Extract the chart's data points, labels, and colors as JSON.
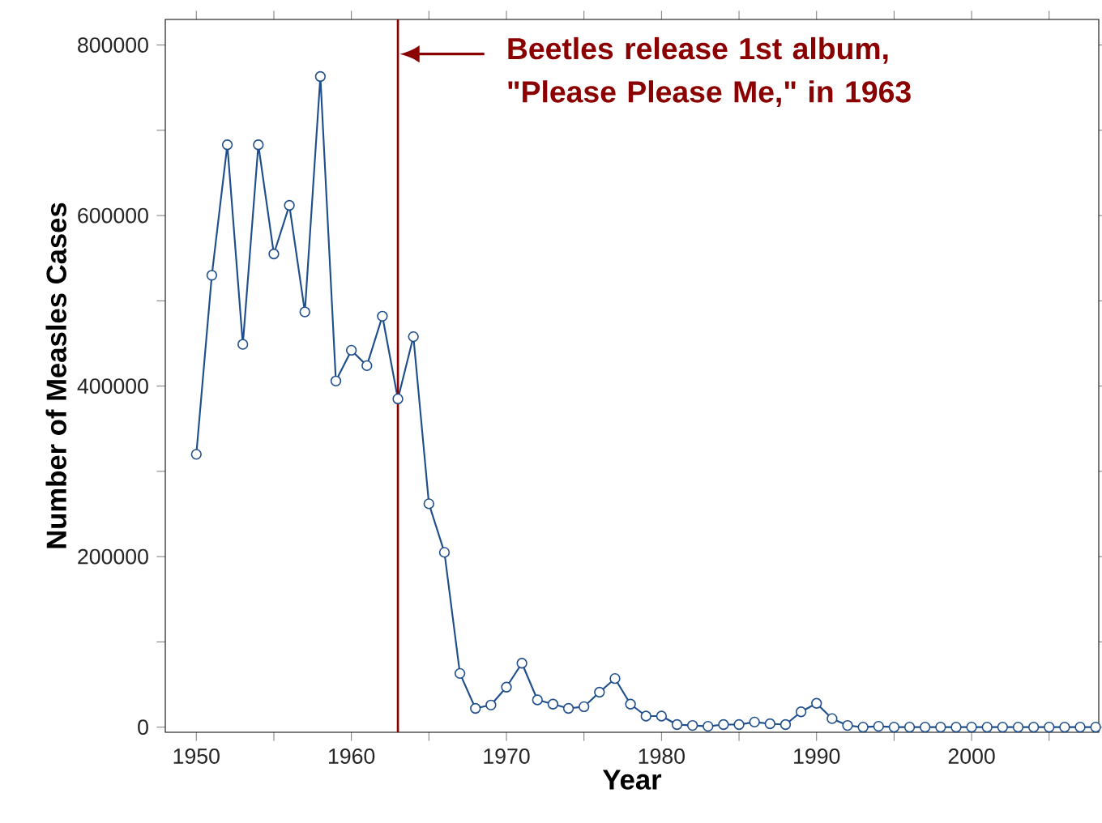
{
  "chart_data": {
    "type": "line",
    "xlabel": "Year",
    "ylabel": "Number of Measles Cases",
    "x": [
      1950,
      1951,
      1952,
      1953,
      1954,
      1955,
      1956,
      1957,
      1958,
      1959,
      1960,
      1961,
      1962,
      1963,
      1964,
      1965,
      1966,
      1967,
      1968,
      1969,
      1970,
      1971,
      1972,
      1973,
      1974,
      1975,
      1976,
      1977,
      1978,
      1979,
      1980,
      1981,
      1982,
      1983,
      1984,
      1985,
      1986,
      1987,
      1988,
      1989,
      1990,
      1991,
      1992,
      1993,
      1994,
      1995,
      1996,
      1997,
      1998,
      1999,
      2000,
      2001,
      2002,
      2003,
      2004,
      2005,
      2006,
      2007,
      2008
    ],
    "values": [
      320000,
      530000,
      683000,
      449000,
      683000,
      555000,
      612000,
      487000,
      763000,
      406000,
      442000,
      424000,
      482000,
      385000,
      458000,
      262000,
      205000,
      63000,
      22000,
      26000,
      47000,
      75000,
      32000,
      27000,
      22000,
      24000,
      41000,
      57000,
      27000,
      13000,
      13000,
      3000,
      2000,
      1000,
      3000,
      3000,
      6000,
      4000,
      3000,
      18000,
      28000,
      10000,
      2000,
      0,
      1000,
      0,
      0,
      0,
      0,
      0,
      0,
      0,
      0,
      0,
      0,
      0,
      0,
      0,
      0
    ],
    "color": "#1f4e8c",
    "marker": "circle",
    "line_style": "solid",
    "xlim": [
      1948,
      2008.2
    ],
    "ylim": [
      -6000,
      830000
    ],
    "xticks": [
      1950,
      {
        "value": 1955,
        "label": null
      },
      1960,
      {
        "value": 1965,
        "label": null
      },
      1970,
      {
        "value": 1975,
        "label": null
      },
      1980,
      {
        "value": 1985,
        "label": null
      },
      1990,
      {
        "value": 1995,
        "label": null
      },
      2000,
      {
        "value": 2005,
        "label": null
      }
    ],
    "yticks": [
      0,
      {
        "value": 100000,
        "label": null
      },
      200000,
      {
        "value": 300000,
        "label": null
      },
      400000,
      {
        "value": 500000,
        "label": null
      },
      600000,
      {
        "value": 700000,
        "label": null
      },
      800000
    ],
    "ref_lines": [
      {
        "axis": "x",
        "value": 1963,
        "color": "#8b0000",
        "line_style": "solid",
        "label": "Beetles release 1st album, \"Please Please Me,\" in 1963"
      }
    ]
  }
}
